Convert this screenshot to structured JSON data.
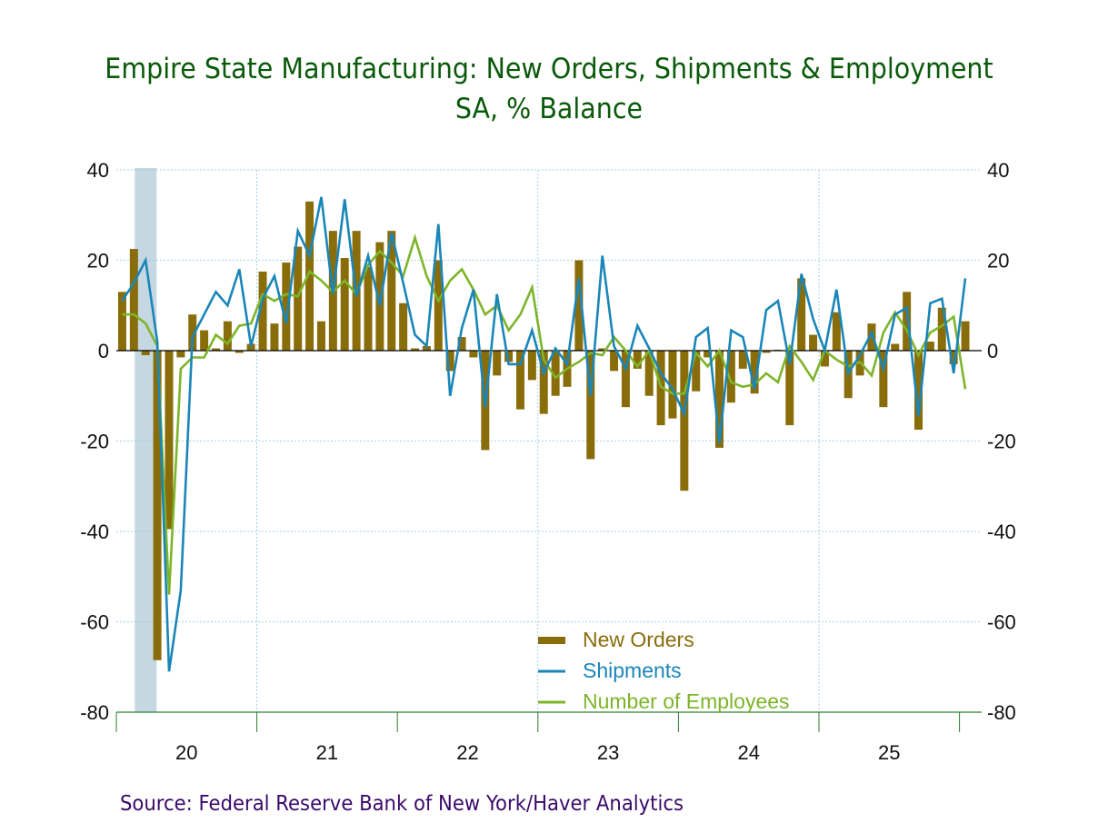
{
  "chart_data": {
    "type": "bar+line",
    "title": "Empire State Manufacturing: New Orders, Shipments & Employment",
    "subtitle": "SA, % Balance",
    "source": "Source:  Federal Reserve Bank of New York/Haver Analytics",
    "x_start": "2020-01",
    "frequency": "monthly",
    "x_tick_labels": [
      "20",
      "21",
      "22",
      "23",
      "24",
      "25"
    ],
    "y_ticks": [
      40,
      20,
      0,
      -20,
      -40,
      -60,
      -80
    ],
    "y_tick_labels": [
      "40",
      "20",
      "0",
      "-20",
      "-40",
      "-60",
      "-80"
    ],
    "ylim": [
      -80,
      40
    ],
    "grid": true,
    "recession_shading": {
      "start": "2020-02",
      "end": "2020-04"
    },
    "legend_placement": "bottom-center",
    "colors": {
      "new_orders": "#8a6d0b",
      "shipments": "#1a86b8",
      "employees": "#7db52a",
      "title": "#0a5a0a",
      "source": "#3a0a6a",
      "grid": "#8ec5e0",
      "recession": "#c5d8e2",
      "axis": "#2e7d32"
    },
    "series": [
      {
        "name": "New Orders",
        "type": "bar",
        "values": [
          13,
          22.5,
          -1,
          -68.5,
          -39.5,
          -1.5,
          8,
          4.5,
          0.5,
          6.5,
          -0.5,
          1.5,
          17.5,
          6,
          19.5,
          23,
          33,
          6.5,
          26.5,
          20.5,
          26.5,
          18.5,
          24,
          26.5,
          10.5,
          0.5,
          1,
          20,
          -4.5,
          3,
          -1.5,
          -22,
          -5.5,
          -2.5,
          -13,
          -6.5,
          -14,
          -10,
          -8,
          20,
          -24,
          0.5,
          -4.5,
          -12.5,
          -4,
          -10,
          -16.5,
          -15,
          -31,
          -9,
          -1.5,
          -21.5,
          -11.5,
          -4,
          -9.5,
          -0.5,
          0.2,
          -16.5,
          16,
          3.5,
          -3.5,
          8.5,
          -10.5,
          -5.5,
          6,
          -12.5,
          1.5,
          13,
          -17.5,
          2,
          9.5,
          -3,
          6.5
        ]
      },
      {
        "name": "Shipments",
        "type": "line",
        "values": [
          11,
          15,
          20,
          2,
          -71,
          -53,
          3,
          8,
          13,
          10,
          18,
          1,
          11.5,
          16.5,
          6,
          26.5,
          21,
          34,
          12.5,
          33.5,
          12,
          21,
          10,
          26,
          15,
          3.5,
          1,
          28,
          -10,
          5,
          13.5,
          -12.5,
          12.5,
          -3,
          -3,
          4.5,
          -5,
          0.5,
          -3,
          16,
          -10,
          21,
          1,
          -4,
          5.5,
          0.5,
          -5,
          -8.5,
          -14,
          3,
          5,
          -20.5,
          4.5,
          3,
          -8.5,
          9,
          11,
          -3,
          17,
          7,
          0,
          13.5,
          -5,
          -1,
          4,
          -4,
          8,
          9.5,
          -14.5,
          10.5,
          11.5,
          -5,
          16
        ]
      },
      {
        "name": "Number of Employees",
        "type": "line",
        "values": [
          8,
          8,
          6,
          1,
          -54,
          -4,
          -1.5,
          -1.5,
          3.5,
          1.5,
          5.5,
          6,
          12.5,
          11,
          12.5,
          12,
          17.5,
          15.5,
          13,
          15.5,
          12.5,
          19,
          22,
          19.5,
          16.5,
          25,
          16.5,
          11,
          15.5,
          18,
          13.5,
          8,
          10,
          4.5,
          8,
          14,
          -2,
          -6,
          -4,
          -2.5,
          -0.5,
          -1,
          3,
          0,
          -3.5,
          0,
          -8,
          -9.5,
          -9.5,
          -0.5,
          -3.5,
          0,
          -7,
          -8,
          -7.5,
          -5,
          -7,
          1,
          -2.5,
          -6.5,
          0,
          -2,
          -3.5,
          -2.5,
          -5.5,
          4,
          8.5,
          4.5,
          -1,
          4,
          5.5,
          7.5,
          -8.5
        ]
      }
    ]
  }
}
